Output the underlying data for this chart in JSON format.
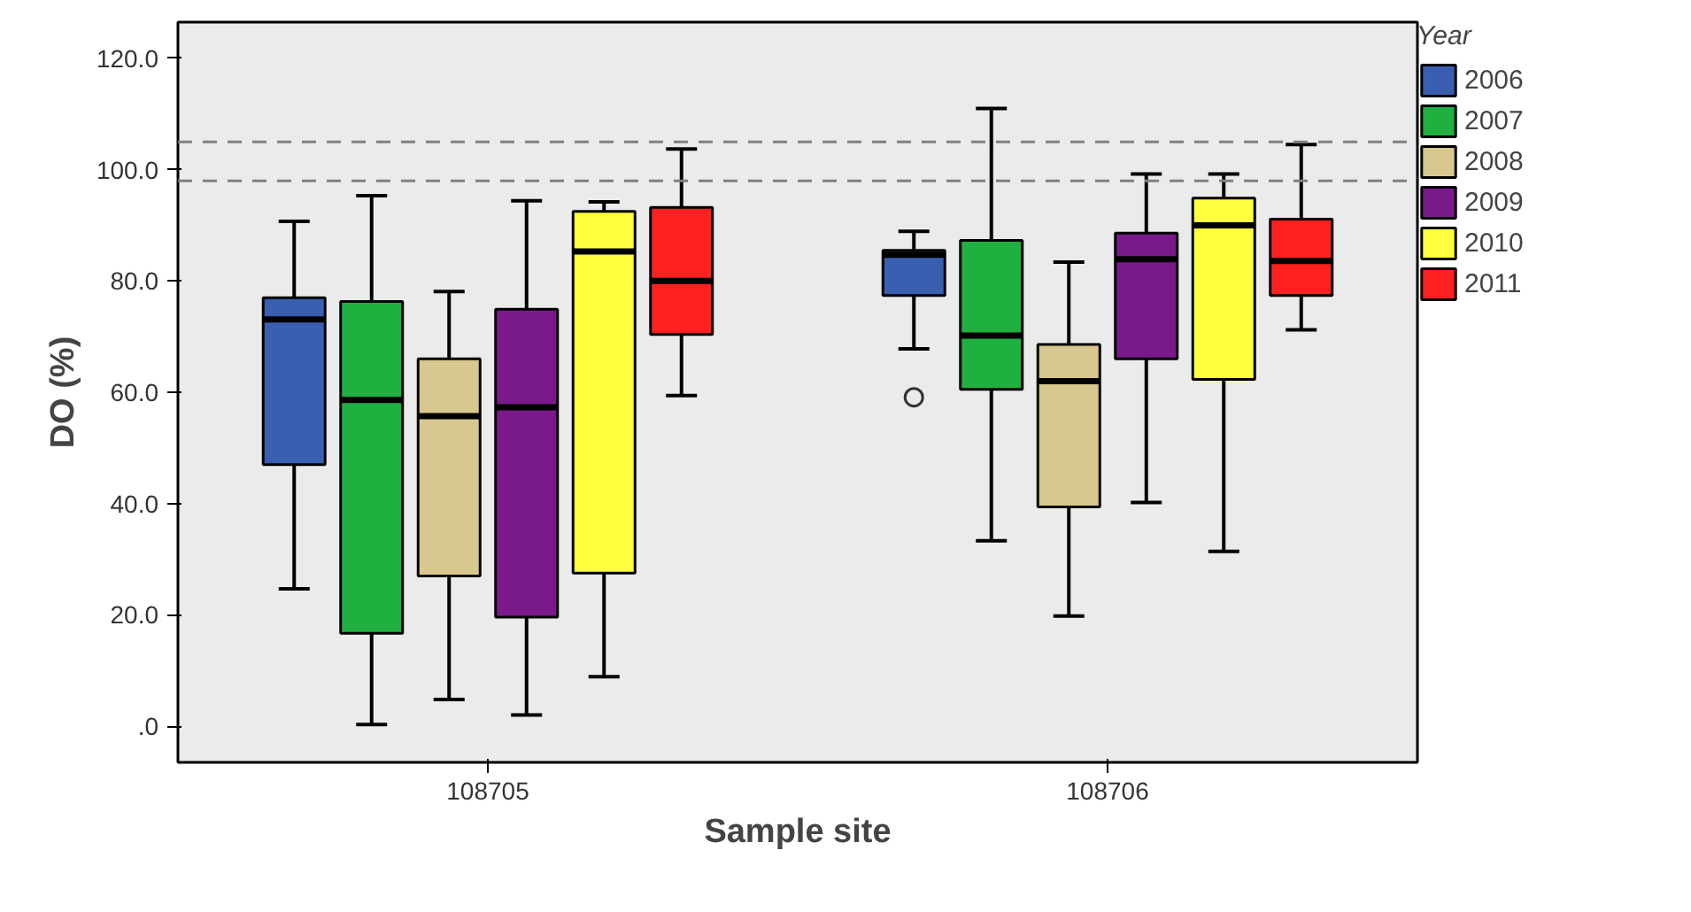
{
  "chart_data": {
    "type": "box",
    "xlabel": "Sample site",
    "ylabel": "DO (%)",
    "legend_title": "Year",
    "legend": "right",
    "grid": false,
    "categories": [
      "108705",
      "108706"
    ],
    "ylim": [
      -6.5,
      126.5
    ],
    "yticks": [
      {
        "value": 0,
        "label": ".0"
      },
      {
        "value": 20,
        "label": "20.0"
      },
      {
        "value": 40,
        "label": "40.0"
      },
      {
        "value": 60,
        "label": "60.0"
      },
      {
        "value": 80,
        "label": "80.0"
      },
      {
        "value": 100,
        "label": "100.0"
      },
      {
        "value": 120,
        "label": "120.0"
      }
    ],
    "ref_lines": [
      {
        "axis": "y",
        "value": 105,
        "color": "#808080",
        "line_style": "dashed"
      },
      {
        "axis": "y",
        "value": 98,
        "color": "#808080",
        "line_style": "dashed"
      }
    ],
    "series": [
      {
        "name": "2006",
        "color": "#3a5fb0",
        "boxes": [
          {
            "low": 24.7,
            "q1": 47.0,
            "median": 73.1,
            "q3": 77.0,
            "high": 90.7
          },
          {
            "low": 67.8,
            "q1": 77.4,
            "median": 84.7,
            "q3": 85.5,
            "high": 88.9,
            "outliers": [
              59.1
            ]
          }
        ]
      },
      {
        "name": "2007",
        "color": "#1fb040",
        "boxes": [
          {
            "low": 0.3,
            "q1": 16.7,
            "median": 58.6,
            "q3": 76.3,
            "high": 95.3
          },
          {
            "low": 33.3,
            "q1": 60.5,
            "median": 70.2,
            "q3": 87.3,
            "high": 111
          }
        ]
      },
      {
        "name": "2008",
        "color": "#d8c890",
        "boxes": [
          {
            "low": 4.8,
            "q1": 27.0,
            "median": 55.7,
            "q3": 66.0,
            "high": 78.1
          },
          {
            "low": 19.8,
            "q1": 39.4,
            "median": 62.0,
            "q3": 68.6,
            "high": 83.4
          }
        ]
      },
      {
        "name": "2009",
        "color": "#7a1a8a",
        "boxes": [
          {
            "low": 2.0,
            "q1": 19.6,
            "median": 57.3,
            "q3": 74.9,
            "high": 94.4
          },
          {
            "low": 40.2,
            "q1": 66.0,
            "median": 83.9,
            "q3": 88.6,
            "high": 99.2
          }
        ]
      },
      {
        "name": "2010",
        "color": "#ffff40",
        "boxes": [
          {
            "low": 8.9,
            "q1": 27.5,
            "median": 85.3,
            "q3": 92.5,
            "high": 94.2
          },
          {
            "low": 31.4,
            "q1": 62.3,
            "median": 90.0,
            "q3": 94.9,
            "high": 99.2
          }
        ]
      },
      {
        "name": "2011",
        "color": "#ff2020",
        "boxes": [
          {
            "low": 59.4,
            "q1": 70.4,
            "median": 80.0,
            "q3": 93.2,
            "high": 103.7
          },
          {
            "low": 71.2,
            "q1": 77.4,
            "median": 83.6,
            "q3": 91.1,
            "high": 104.5
          }
        ]
      }
    ]
  }
}
